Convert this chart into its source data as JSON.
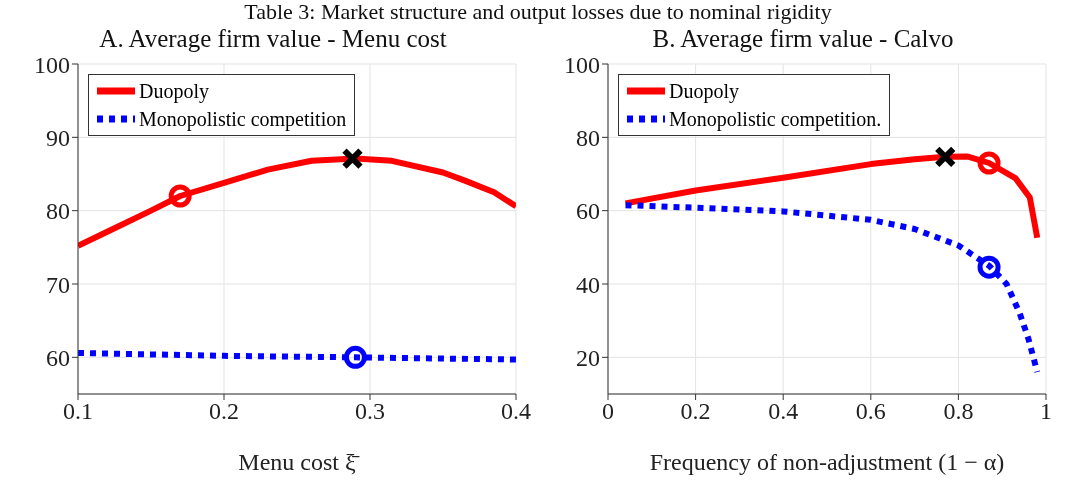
{
  "chart_data": [
    {
      "type": "line",
      "title": "A. Average firm value - Menu cost",
      "annotations": [
        "Table 3: Market structure and output losses due to nominal rigidity"
      ],
      "xlabel": "Menu cost  ξ̄",
      "xlim": [
        0.1,
        0.4
      ],
      "xticks": [
        0.1,
        0.2,
        0.3,
        0.4
      ],
      "ylim": [
        55,
        100
      ],
      "yticks": [
        60,
        70,
        80,
        90,
        100
      ],
      "grid": true,
      "legend": "top left",
      "series": [
        {
          "name": "Duopoly",
          "color": "#ff0000",
          "line_style": "solid",
          "x": [
            0.1,
            0.125,
            0.15,
            0.17,
            0.2,
            0.23,
            0.26,
            0.29,
            0.315,
            0.35,
            0.365,
            0.385,
            0.4
          ],
          "values": [
            75.2,
            77.6,
            80,
            82,
            83.8,
            85.6,
            86.8,
            87.1,
            86.8,
            85.2,
            84.1,
            82.5,
            80.6
          ]
        },
        {
          "name": "Monopolistic competition",
          "color": "#0000ff",
          "line_style": "dotted",
          "x": [
            0.1,
            0.2,
            0.29,
            0.4
          ],
          "values": [
            60.6,
            60.2,
            60,
            59.7
          ]
        },
        {
          "type": "scatter",
          "marker": "circle",
          "color": "#ff0000",
          "x": [
            0.17
          ],
          "values": [
            82
          ]
        },
        {
          "type": "scatter",
          "marker": "cross",
          "color": "#000000",
          "x": [
            0.288
          ],
          "values": [
            87.1
          ]
        },
        {
          "type": "scatter",
          "marker": "circle",
          "color": "#0000ff",
          "x": [
            0.29
          ],
          "values": [
            60
          ]
        }
      ]
    },
    {
      "type": "line",
      "title": "B. Average firm value - Calvo",
      "xlabel": "Frequency of non-adjustment (1 − α)",
      "xlim": [
        0,
        1
      ],
      "xticks": [
        0,
        0.2,
        0.4,
        0.6,
        0.8,
        1
      ],
      "ylim": [
        10,
        100
      ],
      "yticks": [
        20,
        40,
        60,
        80,
        100
      ],
      "grid": true,
      "legend": "top left",
      "series": [
        {
          "name": "Duopoly",
          "color": "#ff0000",
          "line_style": "solid",
          "x": [
            0.04,
            0.2,
            0.4,
            0.6,
            0.7,
            0.77,
            0.82,
            0.87,
            0.93,
            0.963,
            0.98
          ],
          "values": [
            62,
            65.5,
            69,
            72.7,
            74,
            74.7,
            74.8,
            73,
            68.9,
            63.6,
            52.6
          ]
        },
        {
          "name": "Monopolistic competition.",
          "color": "#0000ff",
          "line_style": "dotted",
          "x": [
            0.04,
            0.2,
            0.4,
            0.6,
            0.7,
            0.8,
            0.87,
            0.91,
            0.94,
            0.96,
            0.98
          ],
          "values": [
            61.5,
            60.8,
            59.8,
            57.5,
            55,
            50.5,
            45,
            40,
            32,
            25,
            16
          ]
        },
        {
          "type": "scatter",
          "marker": "cross",
          "color": "#000000",
          "x": [
            0.77
          ],
          "values": [
            74.7
          ]
        },
        {
          "type": "scatter",
          "marker": "circle",
          "color": "#ff0000",
          "x": [
            0.87
          ],
          "values": [
            73
          ]
        },
        {
          "type": "scatter",
          "marker": "circle",
          "color": "#0000ff",
          "x": [
            0.87
          ],
          "values": [
            44.6
          ]
        }
      ]
    }
  ]
}
